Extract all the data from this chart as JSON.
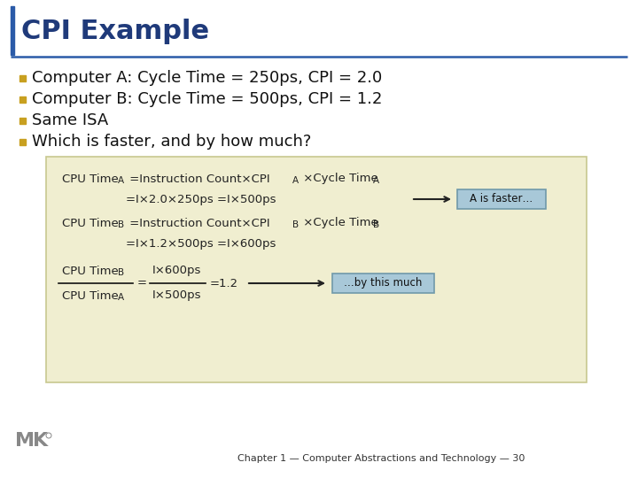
{
  "title": "CPI Example",
  "title_color": "#1F3A7A",
  "title_fontsize": 22,
  "bg_color": "#FFFFFF",
  "accent_bar_color": "#2B5BA8",
  "bullet_color": "#C8A020",
  "bullet_points": [
    "Computer A: Cycle Time = 250ps, CPI = 2.0",
    "Computer B: Cycle Time = 500ps, CPI = 1.2",
    "Same ISA",
    "Which is faster, and by how much?"
  ],
  "formula_bg": "#F0EED0",
  "formula_border": "#C8C890",
  "annotation_bg": "#A8C8D8",
  "annotation_border": "#7099AA",
  "footer_text": "Chapter 1 — Computer Abstractions and Technology — 30",
  "footer_color": "#333333",
  "formula_text_color": "#222222",
  "fs_main": 9.5,
  "fs_sub": 7.5,
  "fs_bullet": 13.0,
  "fs_footer": 8.0
}
